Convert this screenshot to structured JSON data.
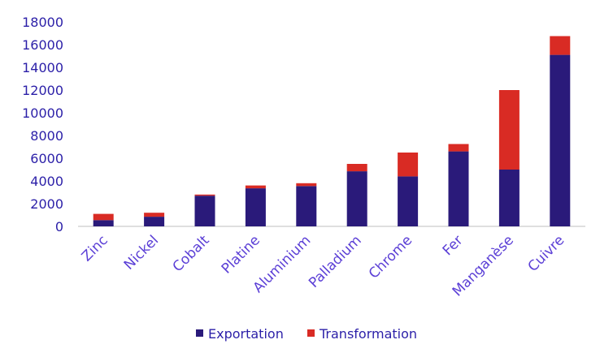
{
  "chart_data": {
    "type": "bar",
    "stacked": true,
    "categories": [
      "Zinc",
      "Nickel",
      "Cobalt",
      "Platine",
      "Aluminium",
      "Palladium",
      "Chrome",
      "Fer",
      "Manganèse",
      "Cuivre"
    ],
    "series": [
      {
        "name": "Exportation",
        "color": "#2a1a7a",
        "values": [
          550,
          850,
          2700,
          3350,
          3550,
          4850,
          4400,
          6600,
          5000,
          15100
        ]
      },
      {
        "name": "Transformation",
        "color": "#d92b24",
        "values": [
          550,
          350,
          100,
          250,
          250,
          650,
          2100,
          650,
          7000,
          1650
        ]
      }
    ],
    "ylim": [
      0,
      18000
    ],
    "yticks": [
      "0",
      "2000",
      "4000",
      "6000",
      "8000",
      "10000",
      "12000",
      "14000",
      "16000",
      "18000"
    ],
    "grid": false,
    "legend": "bottom",
    "axis_color": "#bfbfbf",
    "text_color": "#2b1fa8",
    "category_color": "#5b3fd6"
  }
}
